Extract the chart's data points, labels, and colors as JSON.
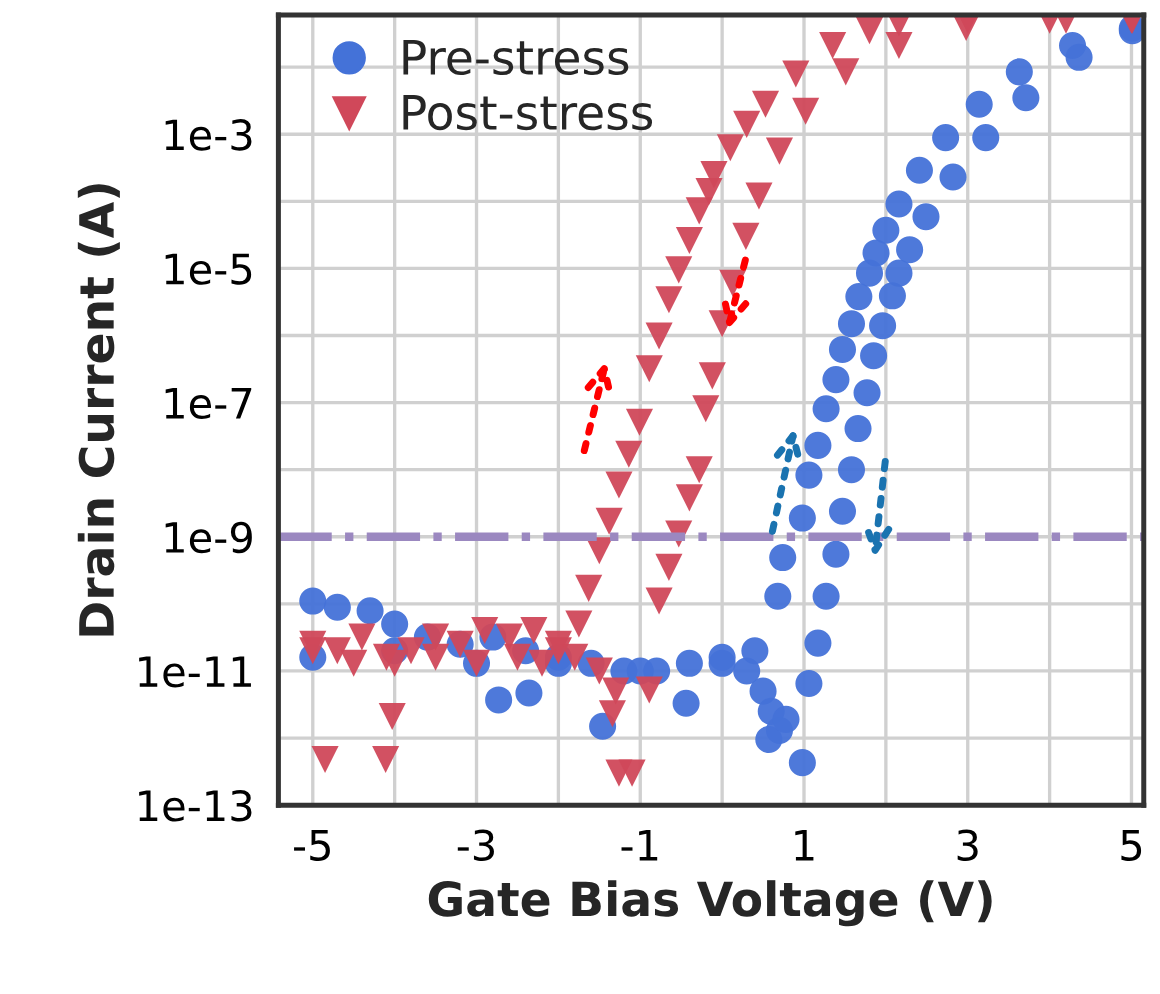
{
  "chart_data": {
    "type": "scatter",
    "xlabel": "Gate Bias Voltage (V)",
    "ylabel": "Drain Current (A)",
    "log": "y",
    "grid": true,
    "legend": "top left",
    "xlim": [
      -5.42,
      5.15
    ],
    "ylim": [
      1e-13,
      0.06
    ],
    "xticks": [
      -5,
      {
        "value": -4,
        "label": null
      },
      -3,
      {
        "value": -2,
        "label": null
      },
      -1,
      {
        "value": 0,
        "label": null
      },
      1,
      {
        "value": 2,
        "label": null
      },
      3,
      {
        "value": 4,
        "label": null
      },
      5
    ],
    "yticks": [
      {
        "value": 1e-13,
        "label": "1e-13"
      },
      {
        "value": 1e-12,
        "label": null
      },
      {
        "value": 1e-11,
        "label": "1e-11"
      },
      {
        "value": 1e-10,
        "label": null
      },
      {
        "value": 1e-09,
        "label": "1e-9"
      },
      {
        "value": 1e-08,
        "label": null
      },
      {
        "value": 1e-07,
        "label": "1e-7"
      },
      {
        "value": 1e-06,
        "label": null
      },
      {
        "value": 1e-05,
        "label": "1e-5"
      },
      {
        "value": 0.0001,
        "label": null
      },
      {
        "value": 0.001,
        "label": "1e-3"
      },
      {
        "value": 0.01,
        "label": null
      }
    ],
    "ref_lines": [
      {
        "axis": "y",
        "value": 1e-09,
        "color": "#9b88c0",
        "line_style": "dashdot"
      }
    ],
    "series": [
      {
        "name": "Pre-stress",
        "color": "#4472d8",
        "marker": "circle",
        "x": [
          -5.0,
          -4.7,
          -4.3,
          -4.0,
          -3.6,
          -3.2,
          -2.8,
          -2.4,
          -2.0,
          -1.6,
          -1.2,
          -0.8,
          -0.4,
          0.0,
          0.3,
          0.5,
          0.6,
          0.7,
          -2.73,
          -2.36,
          -1.46,
          -0.44,
          -5,
          -4,
          -3,
          -2,
          -1,
          0,
          0.4,
          0.98,
          0.57,
          0.78,
          0.68,
          0.74,
          0.98,
          1.06,
          1.17,
          1.27,
          1.39,
          1.47,
          1.58,
          1.67,
          1.8,
          1.88,
          2.0,
          2.16,
          2.41,
          2.73,
          3.14,
          3.63,
          4.28,
          5.01,
          1.06,
          1.17,
          1.27,
          1.39,
          1.47,
          1.58,
          1.66,
          1.77,
          1.85,
          1.96,
          2.08,
          2.16,
          2.29,
          2.49,
          2.82,
          3.22,
          3.71,
          4.36,
          5.01
        ],
        "values": [
          1.1e-10,
          8.9e-11,
          7.9e-11,
          5e-11,
          3.2e-11,
          2.5e-11,
          3.2e-11,
          2e-11,
          1.6e-11,
          1.3e-11,
          1e-11,
          1e-11,
          1.3e-11,
          1.3e-11,
          1e-11,
          5e-12,
          2.5e-12,
          1.3e-12,
          3.7e-12,
          4.7e-12,
          1.5e-12,
          3.3e-12,
          1.6e-11,
          2e-11,
          1.3e-11,
          1.3e-11,
          1e-11,
          1.6e-11,
          2e-11,
          4.3e-13,
          9.5e-13,
          1.9e-12,
          1.3e-10,
          4.9e-10,
          1.9e-09,
          8.3e-09,
          2.3e-08,
          8.1e-08,
          2.2e-07,
          6.2e-07,
          1.5e-06,
          3.8e-06,
          8.5e-06,
          1.7e-05,
          3.7e-05,
          9.1e-05,
          0.00029,
          0.00089,
          0.0028,
          0.0085,
          0.021,
          0.038,
          6.5e-12,
          2.6e-11,
          1.3e-10,
          5.5e-10,
          2.4e-09,
          1e-08,
          4.1e-08,
          1.4e-07,
          5e-07,
          1.4e-06,
          3.9e-06,
          8.5e-06,
          1.9e-05,
          5.9e-05,
          0.00023,
          0.00089,
          0.0035,
          0.014,
          0.035
        ]
      },
      {
        "name": "Post-stress",
        "color": "#d0485a",
        "marker": "triangle",
        "x": [
          -5,
          -4.7,
          -4.4,
          -4.1,
          -3.8,
          -3.5,
          -3.2,
          -2.9,
          -2.6,
          -2.3,
          -2.0,
          -1.8,
          -1.5,
          -1.3,
          -5,
          -4.5,
          -4,
          -3.5,
          -3,
          -2.5,
          -2.2,
          -2,
          -4.85,
          -4.11,
          -4.03,
          -1.34,
          -1.26,
          -1.1,
          -1.75,
          -1.63,
          -1.5,
          -1.38,
          -1.26,
          -1.14,
          -1.01,
          -0.89,
          -0.77,
          -0.65,
          -0.53,
          -0.4,
          -0.28,
          -0.16,
          -0.1,
          0.1,
          0.3,
          0.53,
          0.9,
          1.35,
          1.8,
          2.16,
          3,
          4,
          5,
          -0.89,
          -0.77,
          -0.65,
          -0.53,
          -0.4,
          -0.28,
          -0.2,
          -0.12,
          0.0,
          0.13,
          0.29,
          0.45,
          0.7,
          1.02,
          1.51,
          2.16,
          2.98,
          4.2,
          5.01
        ],
        "values": [
          2.5e-11,
          2e-11,
          3.2e-11,
          1.6e-11,
          2e-11,
          3.2e-11,
          2.5e-11,
          4e-11,
          3.2e-11,
          4e-11,
          2.5e-11,
          1.6e-11,
          1e-11,
          5e-12,
          2e-11,
          1.3e-11,
          1.3e-11,
          1.6e-11,
          1.3e-11,
          1.6e-11,
          1.3e-11,
          2e-11,
          4.8e-13,
          4.8e-13,
          2.1e-12,
          2.3e-12,
          3e-13,
          3e-13,
          5e-11,
          1.7e-10,
          6.2e-10,
          1.7e-09,
          5.9e-09,
          1.7e-08,
          5.1e-08,
          3.2e-07,
          9.8e-07,
          3.4e-06,
          9.5e-06,
          2.6e-05,
          7.2e-05,
          0.00014,
          0.00025,
          0.00063,
          0.0014,
          0.0028,
          0.0079,
          0.021,
          0.035,
          0.045,
          0.05,
          0.05,
          0.05,
          5.2e-12,
          1.1e-10,
          3.5e-10,
          1.1e-09,
          3.8e-09,
          1e-08,
          8.1e-08,
          2.5e-07,
          1.5e-06,
          6e-06,
          3e-05,
          0.00012,
          0.00056,
          0.0022,
          0.0085,
          0.021,
          0.039,
          0.05,
          0.05
        ]
      }
    ]
  }
}
